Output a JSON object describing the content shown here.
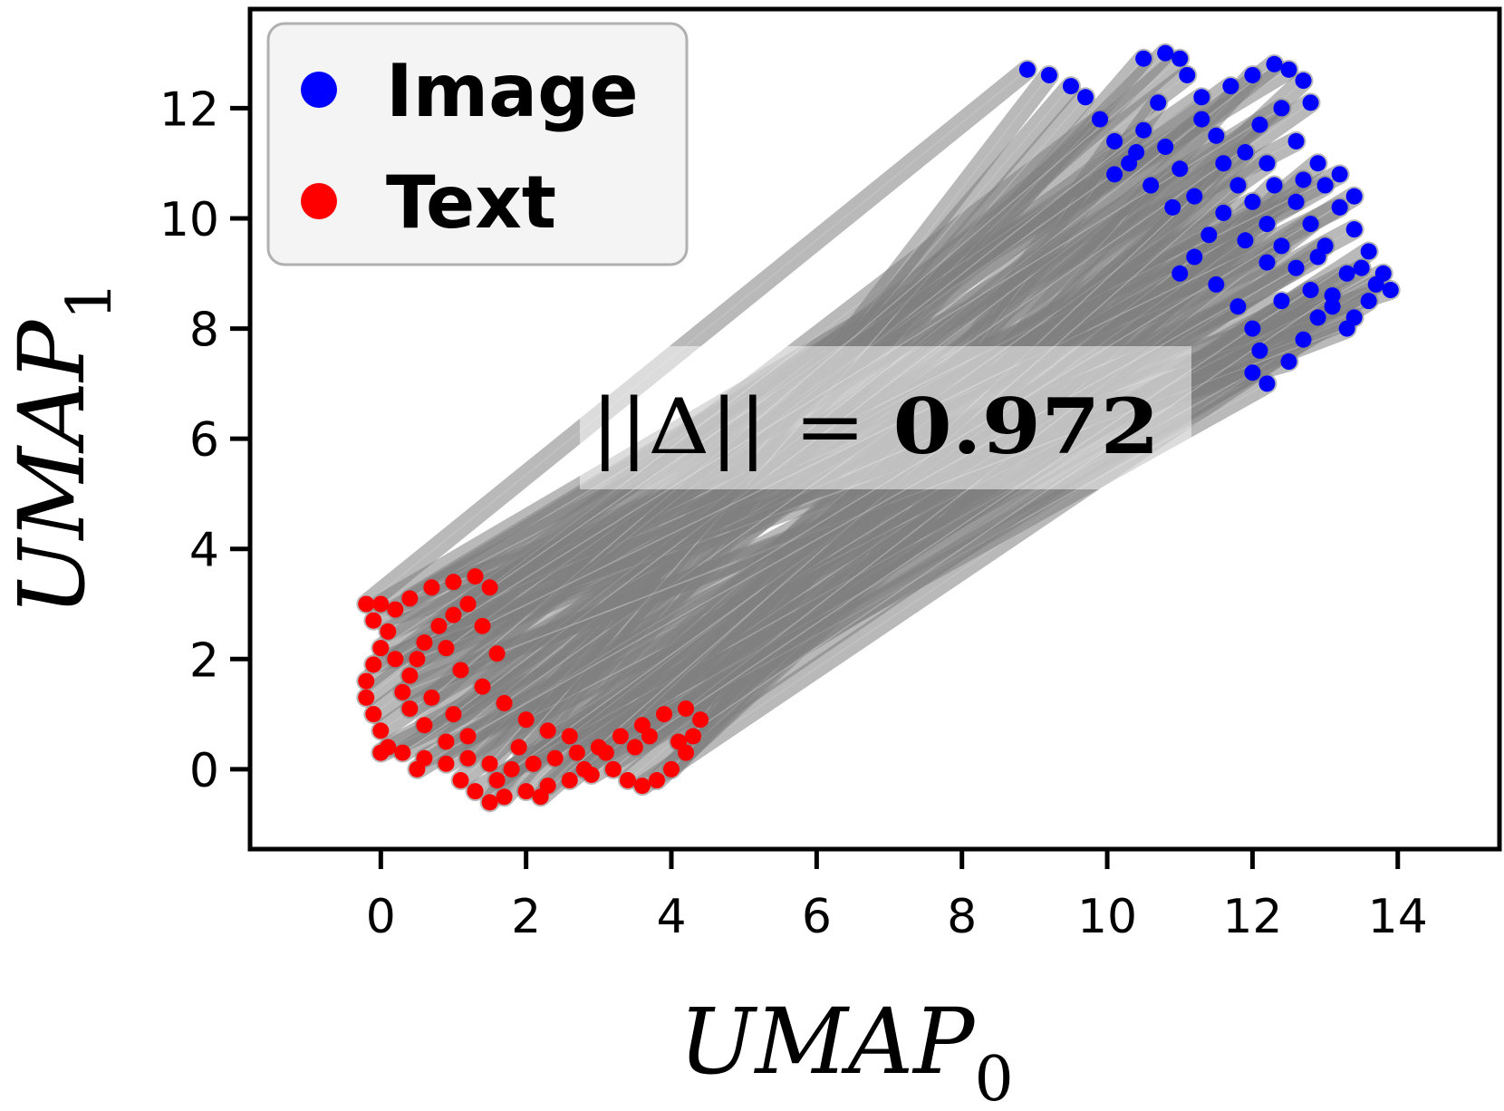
{
  "chart_data": {
    "type": "scatter",
    "title": "",
    "xlabel": {
      "base": "UMAP",
      "sub": "0"
    },
    "ylabel": {
      "base": "UMAP",
      "sub": "1"
    },
    "xlim": [
      -1.8,
      15.4
    ],
    "ylim": [
      -1.45,
      13.8
    ],
    "x_ticks": [
      0,
      2,
      4,
      6,
      8,
      10,
      12,
      14
    ],
    "y_ticks": [
      0,
      2,
      4,
      6,
      8,
      10,
      12
    ],
    "grid": false,
    "legend": {
      "placement": "top-left",
      "entries": [
        {
          "name": "Image",
          "color": "#0000ff"
        },
        {
          "name": "Text",
          "color": "#ff0000"
        }
      ]
    },
    "annotation": {
      "label": "||Δ|| = ",
      "value": "0.972"
    },
    "connector_color": "#808080",
    "series": [
      {
        "name": "Image",
        "color": "#0000ff",
        "points": [
          [
            8.9,
            12.7
          ],
          [
            9.2,
            12.6
          ],
          [
            9.5,
            12.4
          ],
          [
            9.7,
            12.2
          ],
          [
            9.9,
            11.8
          ],
          [
            10.1,
            11.4
          ],
          [
            10.3,
            11.0
          ],
          [
            10.1,
            10.8
          ],
          [
            10.5,
            12.9
          ],
          [
            10.8,
            13.0
          ],
          [
            11.0,
            12.9
          ],
          [
            11.1,
            12.6
          ],
          [
            10.7,
            12.1
          ],
          [
            10.5,
            11.6
          ],
          [
            10.8,
            11.3
          ],
          [
            11.0,
            10.9
          ],
          [
            11.3,
            11.8
          ],
          [
            11.5,
            11.5
          ],
          [
            11.7,
            12.4
          ],
          [
            12.0,
            12.6
          ],
          [
            12.3,
            12.8
          ],
          [
            12.5,
            12.7
          ],
          [
            12.7,
            12.5
          ],
          [
            12.8,
            12.1
          ],
          [
            12.4,
            12.0
          ],
          [
            12.1,
            11.7
          ],
          [
            11.9,
            11.2
          ],
          [
            12.2,
            11.0
          ],
          [
            12.6,
            11.4
          ],
          [
            12.9,
            11.0
          ],
          [
            13.0,
            10.6
          ],
          [
            13.2,
            10.2
          ],
          [
            13.4,
            9.8
          ],
          [
            13.6,
            9.4
          ],
          [
            13.8,
            9.0
          ],
          [
            13.9,
            8.7
          ],
          [
            13.6,
            8.5
          ],
          [
            13.4,
            8.2
          ],
          [
            13.3,
            8.0
          ],
          [
            13.1,
            8.4
          ],
          [
            12.8,
            8.7
          ],
          [
            12.6,
            9.1
          ],
          [
            12.4,
            9.5
          ],
          [
            12.2,
            9.9
          ],
          [
            12.0,
            10.3
          ],
          [
            11.8,
            10.6
          ],
          [
            11.6,
            10.1
          ],
          [
            11.4,
            9.7
          ],
          [
            11.2,
            9.3
          ],
          [
            11.0,
            9.0
          ],
          [
            11.5,
            8.8
          ],
          [
            11.8,
            8.4
          ],
          [
            12.0,
            8.0
          ],
          [
            12.1,
            7.6
          ],
          [
            12.0,
            7.2
          ],
          [
            12.2,
            7.0
          ],
          [
            12.5,
            7.4
          ],
          [
            12.7,
            7.8
          ],
          [
            12.9,
            8.2
          ],
          [
            13.1,
            8.6
          ],
          [
            13.3,
            9.0
          ],
          [
            13.0,
            9.5
          ],
          [
            12.8,
            9.9
          ],
          [
            12.6,
            10.3
          ],
          [
            12.3,
            10.6
          ],
          [
            13.2,
            10.8
          ],
          [
            13.4,
            10.4
          ],
          [
            10.6,
            10.6
          ],
          [
            10.9,
            10.2
          ],
          [
            11.2,
            10.4
          ],
          [
            10.4,
            11.2
          ],
          [
            11.6,
            11.0
          ],
          [
            12.2,
            9.2
          ],
          [
            12.9,
            9.3
          ],
          [
            13.5,
            9.1
          ],
          [
            13.7,
            8.8
          ],
          [
            11.9,
            9.6
          ],
          [
            12.4,
            8.5
          ],
          [
            12.7,
            10.7
          ],
          [
            11.3,
            12.2
          ]
        ]
      },
      {
        "name": "Text",
        "color": "#ff0000",
        "points": [
          [
            -0.2,
            3.0
          ],
          [
            0.0,
            3.0
          ],
          [
            0.2,
            2.9
          ],
          [
            0.4,
            3.1
          ],
          [
            0.7,
            3.3
          ],
          [
            1.0,
            3.4
          ],
          [
            1.3,
            3.5
          ],
          [
            1.5,
            3.3
          ],
          [
            -0.1,
            2.7
          ],
          [
            0.1,
            2.5
          ],
          [
            0.0,
            2.2
          ],
          [
            -0.1,
            1.9
          ],
          [
            -0.2,
            1.6
          ],
          [
            -0.2,
            1.3
          ],
          [
            -0.1,
            1.0
          ],
          [
            0.0,
            0.7
          ],
          [
            0.1,
            0.4
          ],
          [
            0.0,
            0.3
          ],
          [
            0.3,
            0.3
          ],
          [
            0.6,
            0.2
          ],
          [
            0.9,
            0.1
          ],
          [
            1.1,
            -0.2
          ],
          [
            1.3,
            -0.4
          ],
          [
            1.5,
            -0.6
          ],
          [
            1.7,
            -0.5
          ],
          [
            2.0,
            -0.4
          ],
          [
            2.3,
            -0.3
          ],
          [
            2.6,
            -0.2
          ],
          [
            2.9,
            -0.1
          ],
          [
            3.2,
            0.0
          ],
          [
            3.4,
            -0.2
          ],
          [
            3.6,
            -0.3
          ],
          [
            3.8,
            -0.2
          ],
          [
            4.0,
            0.0
          ],
          [
            4.2,
            0.3
          ],
          [
            4.3,
            0.6
          ],
          [
            4.4,
            0.9
          ],
          [
            4.2,
            1.1
          ],
          [
            3.9,
            1.0
          ],
          [
            3.6,
            0.8
          ],
          [
            3.3,
            0.6
          ],
          [
            3.0,
            0.4
          ],
          [
            2.7,
            0.3
          ],
          [
            2.4,
            0.2
          ],
          [
            2.1,
            0.1
          ],
          [
            1.8,
            0.0
          ],
          [
            1.5,
            0.1
          ],
          [
            1.2,
            0.2
          ],
          [
            0.9,
            0.5
          ],
          [
            0.6,
            0.8
          ],
          [
            0.4,
            1.1
          ],
          [
            0.3,
            1.4
          ],
          [
            0.4,
            1.7
          ],
          [
            0.5,
            2.0
          ],
          [
            0.6,
            2.3
          ],
          [
            0.8,
            2.6
          ],
          [
            1.0,
            2.8
          ],
          [
            1.2,
            3.0
          ],
          [
            0.9,
            2.2
          ],
          [
            1.1,
            1.8
          ],
          [
            1.4,
            1.5
          ],
          [
            1.7,
            1.2
          ],
          [
            2.0,
            0.9
          ],
          [
            2.3,
            0.7
          ],
          [
            2.6,
            0.6
          ],
          [
            3.1,
            0.3
          ],
          [
            3.5,
            0.4
          ],
          [
            2.8,
            0.0
          ],
          [
            1.6,
            -0.2
          ],
          [
            1.9,
            0.4
          ],
          [
            0.7,
            1.3
          ],
          [
            1.0,
            1.0
          ],
          [
            0.2,
            2.0
          ],
          [
            1.4,
            2.6
          ],
          [
            1.6,
            2.1
          ],
          [
            2.2,
            -0.5
          ],
          [
            3.7,
            0.6
          ],
          [
            4.1,
            0.5
          ],
          [
            0.5,
            0.0
          ],
          [
            1.2,
            0.6
          ]
        ]
      }
    ]
  }
}
